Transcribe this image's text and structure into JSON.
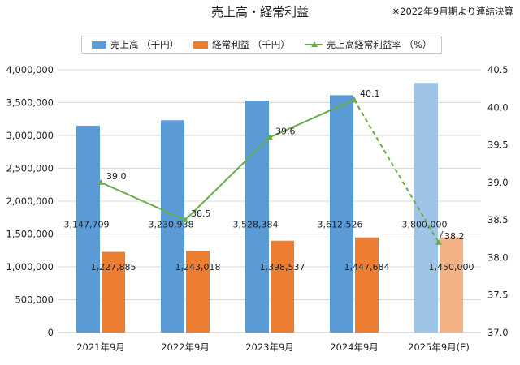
{
  "header": {
    "title": "売上高・経常利益",
    "note": "※2022年9月期より連結決算"
  },
  "colors": {
    "sales": "#5b9bd5",
    "sales_estimate": "#9dc3e6",
    "profit": "#ed7d31",
    "profit_estimate": "#f4b183",
    "margin_line": "#6aac46",
    "grid": "#d9d9d9"
  },
  "chart_data": {
    "type": "bar",
    "title": "売上高・経常利益",
    "categories": [
      "2021年9月",
      "2022年9月",
      "2023年9月",
      "2024年9月",
      "2025年9月(E)"
    ],
    "series": [
      {
        "name": "売上高 （千円）",
        "type": "bar",
        "axis": "left",
        "values": [
          3147709,
          3230938,
          3528384,
          3612526,
          3800000
        ],
        "labels": [
          "3,147,709",
          "3,230,938",
          "3,528,384",
          "3,612,526",
          "3,800,000"
        ]
      },
      {
        "name": "経常利益 （千円）",
        "type": "bar",
        "axis": "left",
        "values": [
          1227885,
          1243018,
          1398537,
          1447684,
          1450000
        ],
        "labels": [
          "1,227,885",
          "1,243,018",
          "1,398,537",
          "1,447,684",
          "1,450,000"
        ]
      },
      {
        "name": "売上高経常利益率 （%）",
        "type": "line",
        "axis": "right",
        "values": [
          39.0,
          38.5,
          39.6,
          40.1,
          38.2
        ],
        "labels": [
          "39.0",
          "38.5",
          "39.6",
          "40.1",
          "38.2"
        ],
        "dashed_last_segment": true
      }
    ],
    "y_left": {
      "min": 0,
      "max": 4000000,
      "step": 500000,
      "ticks": [
        "0",
        "500,000",
        "1,000,000",
        "1,500,000",
        "2,000,000",
        "2,500,000",
        "3,000,000",
        "3,500,000",
        "4,000,000"
      ]
    },
    "y_right": {
      "min": 37.0,
      "max": 40.5,
      "step": 0.5,
      "ticks": [
        "37.0",
        "37.5",
        "38.0",
        "38.5",
        "39.0",
        "39.5",
        "40.0",
        "40.5"
      ]
    },
    "estimate_category_index": 4,
    "grid": true,
    "legend": "top"
  }
}
